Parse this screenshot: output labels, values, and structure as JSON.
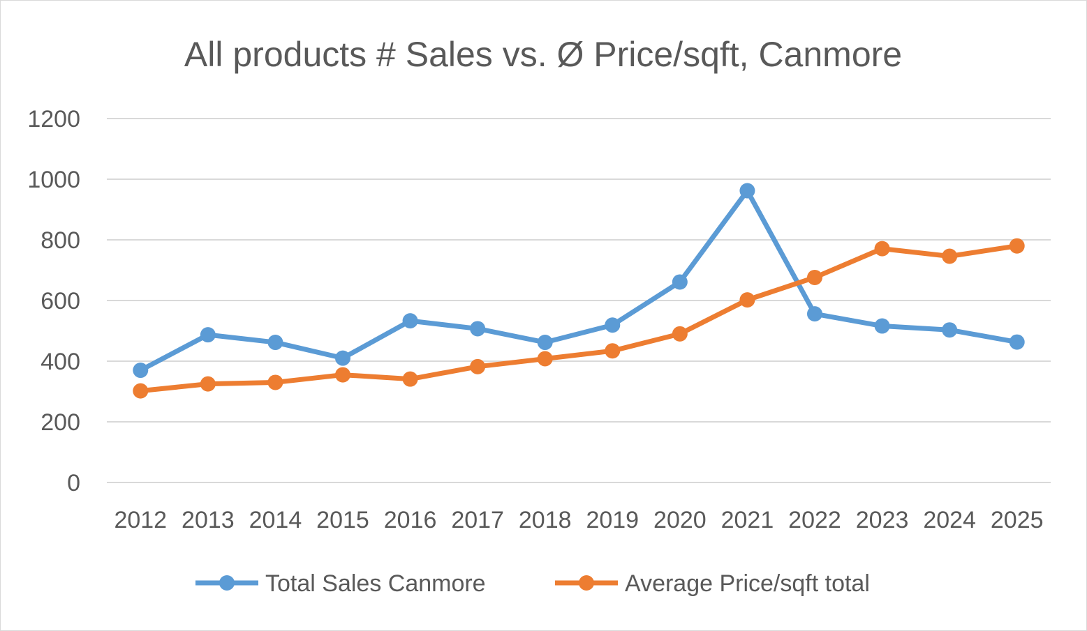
{
  "chart_data": {
    "type": "line",
    "title": "All products # Sales vs. Ø Price/sqft, Canmore",
    "xlabel": "",
    "ylabel": "",
    "ylim": [
      0,
      1200
    ],
    "yticks": [
      "0",
      "200",
      "400",
      "600",
      "800",
      "1000",
      "1200"
    ],
    "grid": true,
    "legend_position": "bottom",
    "categories": [
      "2012",
      "2013",
      "2014",
      "2015",
      "2016",
      "2017",
      "2018",
      "2019",
      "2020",
      "2021",
      "2022",
      "2023",
      "2024",
      "2025"
    ],
    "series": [
      {
        "name": "Total Sales Canmore",
        "color": "#5b9bd5",
        "values": [
          370,
          487,
          462,
          410,
          533,
          507,
          462,
          519,
          661,
          962,
          556,
          516,
          503,
          463
        ]
      },
      {
        "name": "Average Price/sqft total",
        "color": "#ed7d31",
        "values": [
          302,
          325,
          330,
          355,
          341,
          382,
          408,
          434,
          490,
          602,
          676,
          771,
          746,
          780
        ]
      }
    ]
  }
}
